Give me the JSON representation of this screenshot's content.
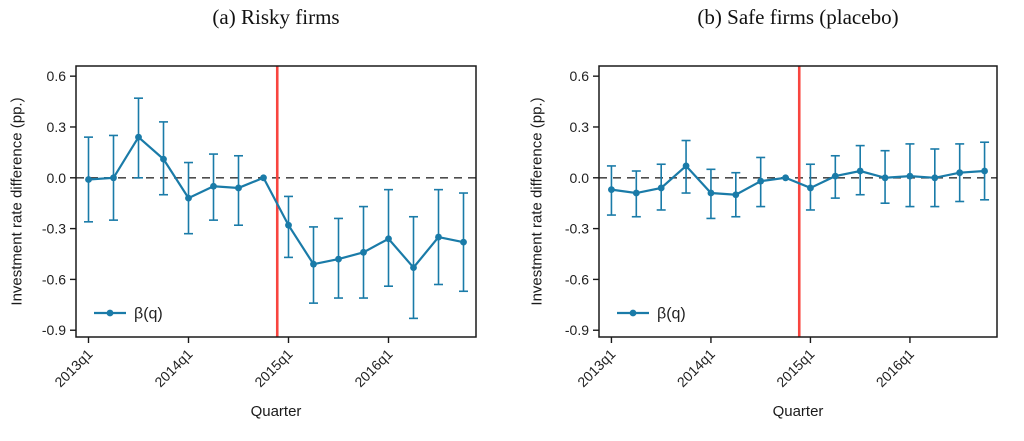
{
  "figure": {
    "background": "#ffffff",
    "series_color": "#1a7ba8",
    "event_line_color": "#f8453f",
    "zero_line_color": "#4d4d4d",
    "axis_color": "#1a1a1a"
  },
  "chart_data": [
    {
      "type": "line",
      "title": "(a) Risky firms",
      "xlabel": "Quarter",
      "ylabel": "Investment rate difference (pp.)",
      "grid": false,
      "legend_position": "bottom-left-inside",
      "ylim": [
        -0.94,
        0.66
      ],
      "y_ticks": [
        "0.6",
        "0.3",
        "0.0",
        "-0.3",
        "-0.6",
        "-0.9"
      ],
      "x_ticks": {
        "indices": [
          0,
          4,
          8,
          12
        ],
        "labels": [
          "2013q1",
          "2014q1",
          "2015q1",
          "2016q1"
        ]
      },
      "categories": [
        "2013q1",
        "2013q2",
        "2013q3",
        "2013q4",
        "2014q1",
        "2014q2",
        "2014q3",
        "2014q4",
        "2015q1",
        "2015q2",
        "2015q3",
        "2015q4",
        "2016q1",
        "2016q2",
        "2016q3",
        "2016q4"
      ],
      "event_line_x": 7.55,
      "zero_line": true,
      "series": [
        {
          "name": "β(q)",
          "values": [
            -0.01,
            0.0,
            0.24,
            0.11,
            -0.12,
            -0.05,
            -0.06,
            0.0,
            -0.28,
            -0.51,
            -0.48,
            -0.44,
            -0.36,
            -0.53,
            -0.35,
            -0.38
          ],
          "ci_low": [
            -0.26,
            -0.25,
            0.0,
            -0.1,
            -0.33,
            -0.25,
            -0.28,
            null,
            -0.47,
            -0.74,
            -0.71,
            -0.71,
            -0.64,
            -0.83,
            -0.63,
            -0.67
          ],
          "ci_high": [
            0.24,
            0.25,
            0.47,
            0.33,
            0.09,
            0.14,
            0.13,
            null,
            -0.11,
            -0.29,
            -0.24,
            -0.17,
            -0.07,
            -0.23,
            -0.07,
            -0.09
          ]
        }
      ]
    },
    {
      "type": "line",
      "title": "(b) Safe firms (placebo)",
      "xlabel": "Quarter",
      "ylabel": "Investment rate difference (pp.)",
      "grid": false,
      "legend_position": "bottom-left-inside",
      "ylim": [
        -0.94,
        0.66
      ],
      "y_ticks": [
        "0.6",
        "0.3",
        "0.0",
        "-0.3",
        "-0.6",
        "-0.9"
      ],
      "x_ticks": {
        "indices": [
          0,
          4,
          8,
          12
        ],
        "labels": [
          "2013q1",
          "2014q1",
          "2015q1",
          "2016q1"
        ]
      },
      "categories": [
        "2013q1",
        "2013q2",
        "2013q3",
        "2013q4",
        "2014q1",
        "2014q2",
        "2014q3",
        "2014q4",
        "2015q1",
        "2015q2",
        "2015q3",
        "2015q4",
        "2016q1",
        "2016q2",
        "2016q3",
        "2016q4"
      ],
      "event_line_x": 7.55,
      "zero_line": true,
      "series": [
        {
          "name": "β(q)",
          "values": [
            -0.07,
            -0.09,
            -0.06,
            0.07,
            -0.09,
            -0.1,
            -0.02,
            0.0,
            -0.06,
            0.01,
            0.04,
            0.0,
            0.01,
            0.0,
            0.03,
            0.04
          ],
          "ci_low": [
            -0.22,
            -0.23,
            -0.19,
            -0.09,
            -0.24,
            -0.23,
            -0.17,
            null,
            -0.19,
            -0.12,
            -0.1,
            -0.15,
            -0.17,
            -0.17,
            -0.14,
            -0.13
          ],
          "ci_high": [
            0.07,
            0.04,
            0.08,
            0.22,
            0.05,
            0.03,
            0.12,
            null,
            0.08,
            0.13,
            0.19,
            0.16,
            0.2,
            0.17,
            0.2,
            0.21
          ]
        }
      ]
    }
  ]
}
